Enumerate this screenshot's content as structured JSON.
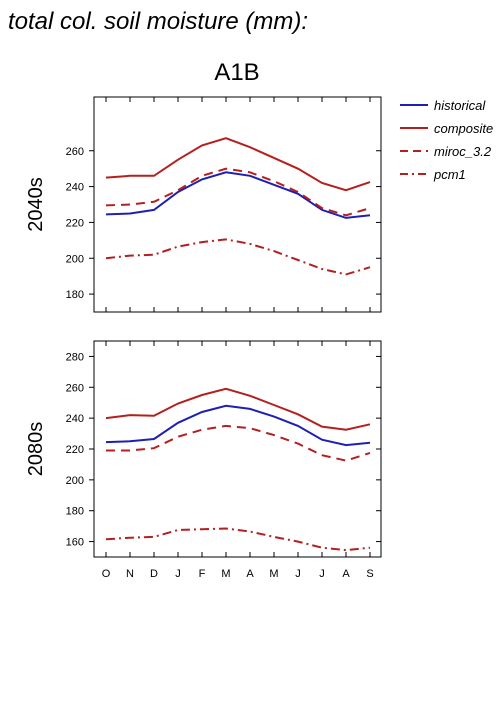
{
  "page": {
    "title": "total col. soil moisture (mm):"
  },
  "chart_data": {
    "type": "line",
    "scenario": "A1B",
    "months": [
      "O",
      "N",
      "D",
      "J",
      "F",
      "M",
      "A",
      "M",
      "J",
      "J",
      "A",
      "S"
    ],
    "colors": {
      "historical": "#1f1fb4",
      "red": "#b41f1f"
    },
    "legend": [
      {
        "name": "historical",
        "style": "solid",
        "color": "#1f1fb4"
      },
      {
        "name": "composite",
        "style": "solid",
        "color": "#b41f1f"
      },
      {
        "name": "miroc_3.2",
        "style": "dash",
        "color": "#b41f1f"
      },
      {
        "name": "pcm1",
        "style": "dashdot",
        "color": "#b41f1f"
      }
    ],
    "panels": [
      {
        "label": "2040s",
        "ylim": [
          170,
          290
        ],
        "yticks": [
          180,
          200,
          220,
          240,
          260
        ],
        "series": [
          {
            "name": "historical",
            "values": [
              224.5,
              225,
              227,
              237,
              244,
              248,
              246,
              241,
              236,
              227,
              222.5,
              224
            ]
          },
          {
            "name": "composite",
            "values": [
              245,
              246,
              246,
              255,
              263,
              267,
              262,
              256,
              250,
              242,
              238,
              242.5
            ]
          },
          {
            "name": "miroc_3.2",
            "values": [
              229.5,
              230,
              231.5,
              238,
              246,
              250,
              248,
              243,
              237,
              228,
              224,
              228
            ]
          },
          {
            "name": "pcm1",
            "values": [
              200,
              201.5,
              202,
              206.5,
              209,
              210.5,
              208,
              204,
              199,
              194,
              191,
              195
            ]
          }
        ]
      },
      {
        "label": "2080s",
        "ylim": [
          150,
          290
        ],
        "yticks": [
          160,
          180,
          200,
          220,
          240,
          260,
          280
        ],
        "series": [
          {
            "name": "historical",
            "values": [
              224.5,
              225,
              226.5,
              237,
              244,
              248,
              246,
              241,
              235,
              226,
              222.5,
              224
            ]
          },
          {
            "name": "composite",
            "values": [
              240,
              242,
              241.5,
              249.5,
              255,
              259,
              254.5,
              248.5,
              242.5,
              234.5,
              232.5,
              236
            ]
          },
          {
            "name": "miroc_3.2",
            "values": [
              219,
              219,
              220.5,
              228,
              232.5,
              235,
              233.5,
              229,
              223.5,
              216,
              212.5,
              217.5
            ]
          },
          {
            "name": "pcm1",
            "values": [
              161.5,
              162.5,
              163,
              167.5,
              168,
              168.5,
              166.5,
              163,
              160,
              156,
              154.5,
              156
            ]
          }
        ]
      }
    ]
  }
}
